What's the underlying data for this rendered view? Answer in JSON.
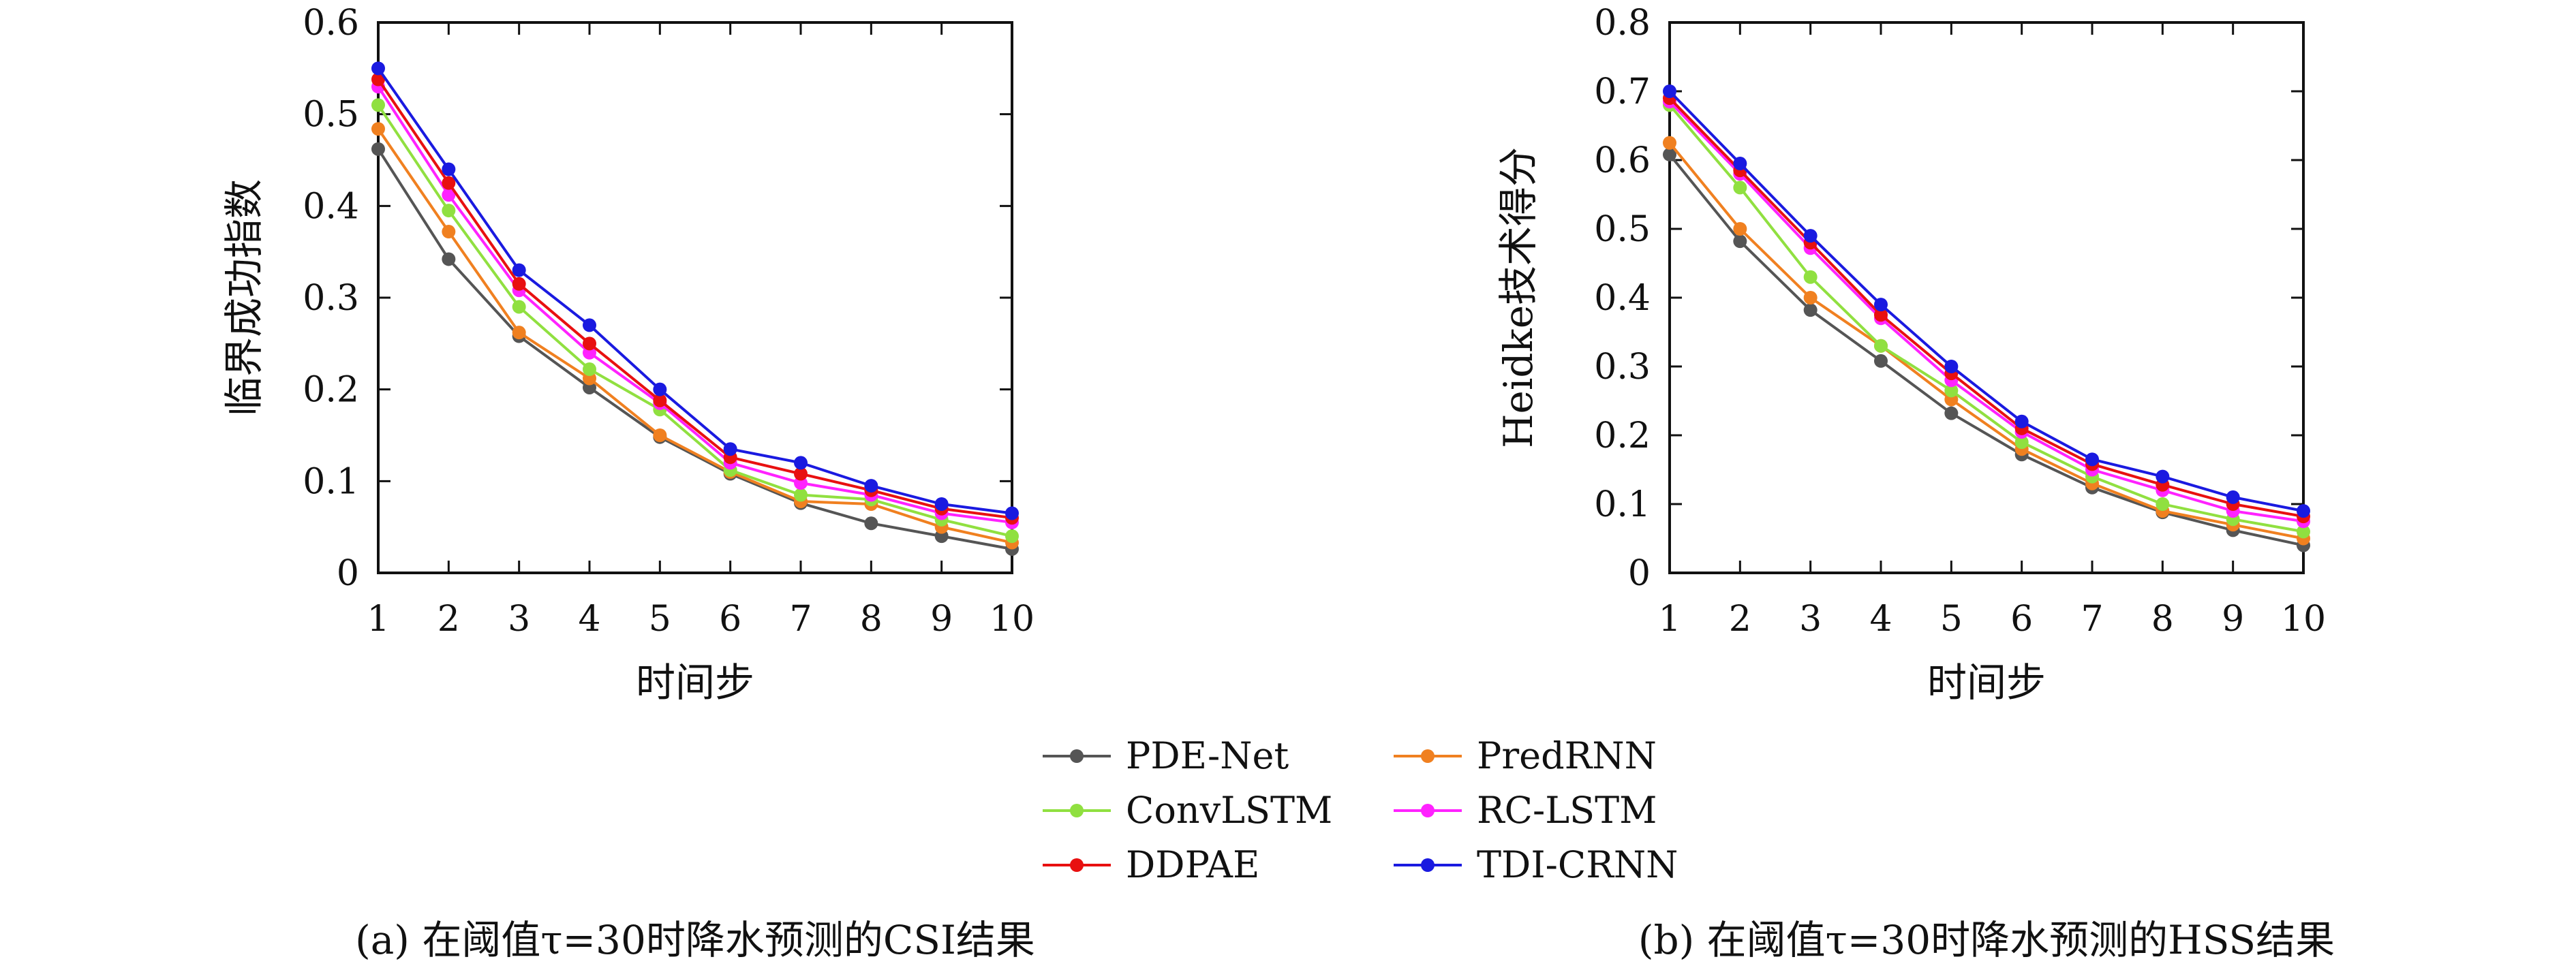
{
  "chart_data": [
    {
      "type": "line",
      "caption": "(a) 在阈值τ=30时降水预测的CSI结果",
      "xlabel": "时间步",
      "ylabel": "临界成功指数",
      "x": [
        1,
        2,
        3,
        4,
        5,
        6,
        7,
        8,
        9,
        10
      ],
      "xlim": [
        1,
        10
      ],
      "ylim": [
        0,
        0.6
      ],
      "yticks": [
        0,
        0.1,
        0.2,
        0.3,
        0.4,
        0.5,
        0.6
      ],
      "yticklabels": [
        "0",
        "0.1",
        "0.2",
        "0.3",
        "0.4",
        "0.5",
        "0.6"
      ],
      "xticklabels": [
        "1",
        "2",
        "3",
        "4",
        "5",
        "6",
        "7",
        "8",
        "9",
        "10"
      ],
      "grid": false,
      "series": [
        {
          "name": "PDE-Net",
          "color": "#555555",
          "values": [
            0.462,
            0.342,
            0.258,
            0.202,
            0.148,
            0.108,
            0.076,
            0.054,
            0.04,
            0.026
          ]
        },
        {
          "name": "PredRNN",
          "color": "#f08020",
          "values": [
            0.484,
            0.372,
            0.262,
            0.212,
            0.15,
            0.11,
            0.078,
            0.075,
            0.05,
            0.033
          ]
        },
        {
          "name": "ConvLSTM",
          "color": "#90e040",
          "values": [
            0.51,
            0.395,
            0.29,
            0.222,
            0.178,
            0.112,
            0.085,
            0.08,
            0.058,
            0.04
          ]
        },
        {
          "name": "RC-LSTM",
          "color": "#ff22ff",
          "values": [
            0.53,
            0.412,
            0.308,
            0.24,
            0.185,
            0.12,
            0.098,
            0.085,
            0.065,
            0.055
          ]
        },
        {
          "name": "DDPAE",
          "color": "#e81010",
          "values": [
            0.538,
            0.425,
            0.315,
            0.25,
            0.188,
            0.126,
            0.108,
            0.09,
            0.07,
            0.06
          ]
        },
        {
          "name": "TDI-CRNN",
          "color": "#1a1ae0",
          "values": [
            0.55,
            0.44,
            0.33,
            0.27,
            0.2,
            0.135,
            0.12,
            0.095,
            0.075,
            0.065
          ]
        }
      ]
    },
    {
      "type": "line",
      "caption": "(b) 在阈值τ=30时降水预测的HSS结果",
      "xlabel": "时间步",
      "ylabel": "Heidke技术得分",
      "x": [
        1,
        2,
        3,
        4,
        5,
        6,
        7,
        8,
        9,
        10
      ],
      "xlim": [
        1,
        10
      ],
      "ylim": [
        0,
        0.8
      ],
      "yticks": [
        0,
        0.1,
        0.2,
        0.3,
        0.4,
        0.5,
        0.6,
        0.7,
        0.8
      ],
      "yticklabels": [
        "0",
        "0.1",
        "0.2",
        "0.3",
        "0.4",
        "0.5",
        "0.6",
        "0.7",
        "0.8"
      ],
      "xticklabels": [
        "1",
        "2",
        "3",
        "4",
        "5",
        "6",
        "7",
        "8",
        "9",
        "10"
      ],
      "grid": false,
      "series": [
        {
          "name": "PDE-Net",
          "color": "#555555",
          "values": [
            0.608,
            0.482,
            0.382,
            0.308,
            0.232,
            0.172,
            0.124,
            0.088,
            0.062,
            0.04
          ]
        },
        {
          "name": "PredRNN",
          "color": "#f08020",
          "values": [
            0.625,
            0.5,
            0.4,
            0.33,
            0.252,
            0.18,
            0.13,
            0.09,
            0.07,
            0.05
          ]
        },
        {
          "name": "ConvLSTM",
          "color": "#90e040",
          "values": [
            0.68,
            0.56,
            0.43,
            0.33,
            0.265,
            0.19,
            0.14,
            0.1,
            0.078,
            0.06
          ]
        },
        {
          "name": "RC-LSTM",
          "color": "#ff22ff",
          "values": [
            0.685,
            0.58,
            0.472,
            0.37,
            0.28,
            0.205,
            0.15,
            0.12,
            0.09,
            0.075
          ]
        },
        {
          "name": "DDPAE",
          "color": "#e81010",
          "values": [
            0.69,
            0.585,
            0.48,
            0.375,
            0.29,
            0.21,
            0.158,
            0.128,
            0.1,
            0.082
          ]
        },
        {
          "name": "TDI-CRNN",
          "color": "#1a1ae0",
          "values": [
            0.7,
            0.595,
            0.49,
            0.39,
            0.3,
            0.22,
            0.165,
            0.14,
            0.11,
            0.09
          ]
        }
      ]
    }
  ],
  "legend": {
    "placement": "bottom-center",
    "entries": [
      {
        "name": "PDE-Net",
        "color": "#555555"
      },
      {
        "name": "PredRNN",
        "color": "#f08020"
      },
      {
        "name": "ConvLSTM",
        "color": "#90e040"
      },
      {
        "name": "RC-LSTM",
        "color": "#ff22ff"
      },
      {
        "name": "DDPAE",
        "color": "#e81010"
      },
      {
        "name": "TDI-CRNN",
        "color": "#1a1ae0"
      }
    ]
  }
}
